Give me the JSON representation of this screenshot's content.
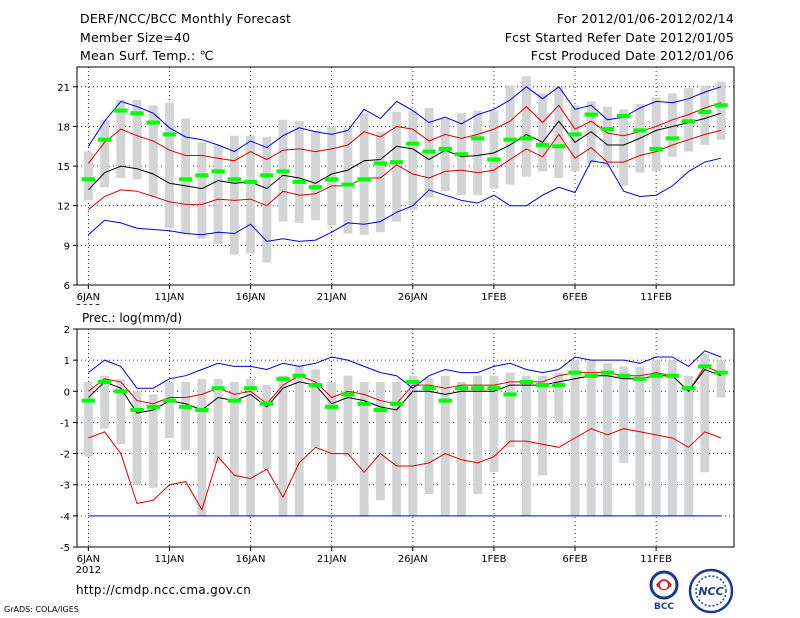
{
  "header": {
    "title": "DERF/NCC/BCC Monthly Forecast",
    "member_size": "Member Size=40",
    "variable": "Mean Surf. Temp.: ℃",
    "period": "For 2012/01/06-2012/02/14",
    "started": "Fcst Started Refer Date 2012/01/05",
    "produced": "Fcst Produced Date 2012/01/06"
  },
  "footer": {
    "url": "http://cmdp.ncc.cma.gov.cn",
    "credit": "GrADS: COLA/IGES"
  },
  "logos": [
    {
      "name": "BCC",
      "icon": "bcc-logo"
    },
    {
      "name": "NCC",
      "icon": "ncc-logo"
    }
  ],
  "colors": {
    "bar": "#d3d4d6",
    "mean": "#000000",
    "median": "#00ff00",
    "inner": "#dd0000",
    "outer": "#0000dd",
    "grid": "#000000"
  },
  "chart_data": [
    {
      "type": "line",
      "title": "Mean Surf. Temp.: ℃",
      "year_label": "2012",
      "x_ticks": [
        {
          "day": 1,
          "label": "6JAN"
        },
        {
          "day": 6,
          "label": "11JAN"
        },
        {
          "day": 11,
          "label": "16JAN"
        },
        {
          "day": 16,
          "label": "21JAN"
        },
        {
          "day": 21,
          "label": "26JAN"
        },
        {
          "day": 26,
          "label": "1FEB"
        },
        {
          "day": 31,
          "label": "6FEB"
        },
        {
          "day": 36,
          "label": "11FEB"
        }
      ],
      "xlim": [
        0.3,
        40.8
      ],
      "ylim": [
        6,
        22.5
      ],
      "y_ticks": [
        6,
        9,
        12,
        15,
        18,
        21
      ],
      "days": [
        1,
        2,
        3,
        4,
        5,
        6,
        7,
        8,
        9,
        10,
        11,
        12,
        13,
        14,
        15,
        16,
        17,
        18,
        19,
        20,
        21,
        22,
        23,
        24,
        25,
        26,
        27,
        28,
        29,
        30,
        31,
        32,
        33,
        34,
        35,
        36,
        37,
        38,
        39,
        40
      ],
      "series": [
        {
          "name": "ensemble maximum",
          "color": "blue",
          "values": [
            16.5,
            18.4,
            19.9,
            19.5,
            19.0,
            17.9,
            17.2,
            17.0,
            16.6,
            16.1,
            16.9,
            16.4,
            17.3,
            17.9,
            17.6,
            17.4,
            17.7,
            19.3,
            18.6,
            19.9,
            19.2,
            18.3,
            18.7,
            18.2,
            18.9,
            19.3,
            20.0,
            21.0,
            20.1,
            21.0,
            19.3,
            19.6,
            18.5,
            18.7,
            19.4,
            19.9,
            19.8,
            20.1,
            20.6,
            21.0
          ]
        },
        {
          "name": "upper band",
          "color": "red",
          "values": [
            15.2,
            16.8,
            17.8,
            17.3,
            16.9,
            16.2,
            15.8,
            15.8,
            15.6,
            15.4,
            16.1,
            15.5,
            16.2,
            16.3,
            16.1,
            16.3,
            16.6,
            17.6,
            17.2,
            18.0,
            17.8,
            16.9,
            17.4,
            17.1,
            17.4,
            17.8,
            18.4,
            19.5,
            18.3,
            19.6,
            17.8,
            18.4,
            17.5,
            17.3,
            17.6,
            18.0,
            18.5,
            18.9,
            19.4,
            19.8
          ]
        },
        {
          "name": "ensemble mean",
          "color": "black",
          "values": [
            13.2,
            14.5,
            15.0,
            14.8,
            14.4,
            13.7,
            13.5,
            13.3,
            13.9,
            13.7,
            13.8,
            13.3,
            14.3,
            14.1,
            13.7,
            14.4,
            14.7,
            15.4,
            15.5,
            16.5,
            16.3,
            15.5,
            16.2,
            15.7,
            15.8,
            16.0,
            16.6,
            17.4,
            16.8,
            18.4,
            16.8,
            17.6,
            16.6,
            16.6,
            17.1,
            17.7,
            18.0,
            18.3,
            18.6,
            19.0
          ]
        },
        {
          "name": "lower band",
          "color": "red",
          "values": [
            11.7,
            12.7,
            13.2,
            13.1,
            12.7,
            12.3,
            12.1,
            12.1,
            12.5,
            12.4,
            12.5,
            12.0,
            13.1,
            12.8,
            12.9,
            13.5,
            13.5,
            14.1,
            14.1,
            15.1,
            14.4,
            14.1,
            14.6,
            14.7,
            14.5,
            14.7,
            15.5,
            16.3,
            15.7,
            17.4,
            15.6,
            16.4,
            15.3,
            15.3,
            15.8,
            16.1,
            16.6,
            17.0,
            17.4,
            17.7
          ]
        },
        {
          "name": "ensemble minimum",
          "color": "blue",
          "values": [
            9.8,
            10.9,
            10.7,
            10.3,
            10.2,
            10.1,
            9.9,
            9.8,
            10.0,
            9.9,
            10.6,
            9.3,
            9.5,
            9.3,
            9.4,
            10.0,
            10.7,
            10.6,
            10.8,
            11.5,
            12.0,
            13.2,
            12.8,
            12.4,
            12.2,
            12.8,
            12.0,
            12.0,
            12.8,
            13.4,
            13.0,
            15.4,
            15.2,
            13.1,
            12.7,
            12.8,
            13.5,
            14.6,
            15.3,
            15.6
          ]
        }
      ],
      "median": [
        14.0,
        17.0,
        19.2,
        19.0,
        18.3,
        17.4,
        14.0,
        14.3,
        14.6,
        14.0,
        13.8,
        14.3,
        14.6,
        13.8,
        13.4,
        14.0,
        13.6,
        14.0,
        15.2,
        15.3,
        16.7,
        16.1,
        16.3,
        15.9,
        17.1,
        15.5,
        17.0,
        17.1,
        16.6,
        16.5,
        17.4,
        18.9,
        17.8,
        18.8,
        17.7,
        16.3,
        17.1,
        18.4,
        19.1,
        19.6
      ],
      "bar_low": [
        12.4,
        13.4,
        14.1,
        14.0,
        12.7,
        10.3,
        9.9,
        9.5,
        9.1,
        8.3,
        8.4,
        7.7,
        10.8,
        10.7,
        10.9,
        10.5,
        9.9,
        9.8,
        10.0,
        10.8,
        11.7,
        12.6,
        13.1,
        12.8,
        12.8,
        13.3,
        13.6,
        14.2,
        14.6,
        14.1,
        14.6,
        15.2,
        14.9,
        13.5,
        14.5,
        14.6,
        15.7,
        16.1,
        16.6,
        17.0
      ],
      "bar_high": [
        16.1,
        18.5,
        20.0,
        20.0,
        19.6,
        19.8,
        18.6,
        16.8,
        16.6,
        17.3,
        17.3,
        17.2,
        18.5,
        18.4,
        17.7,
        18.0,
        17.9,
        19.0,
        17.6,
        19.1,
        19.2,
        19.4,
        18.6,
        19.0,
        19.2,
        19.2,
        21.1,
        21.8,
        20.5,
        21.0,
        19.6,
        19.9,
        19.5,
        19.3,
        19.7,
        20.2,
        20.5,
        20.9,
        21.1,
        21.4
      ]
    },
    {
      "type": "line",
      "title": "Prec.: log(mm/d)",
      "year_label": "2012",
      "x_ticks": [
        {
          "day": 1,
          "label": "6JAN"
        },
        {
          "day": 6,
          "label": "11JAN"
        },
        {
          "day": 11,
          "label": "16JAN"
        },
        {
          "day": 16,
          "label": "21JAN"
        },
        {
          "day": 21,
          "label": "26JAN"
        },
        {
          "day": 26,
          "label": "1FEB"
        },
        {
          "day": 31,
          "label": "6FEB"
        },
        {
          "day": 36,
          "label": "11FEB"
        }
      ],
      "xlim": [
        0.3,
        40.8
      ],
      "ylim": [
        -5,
        2
      ],
      "y_ticks": [
        -5,
        -4,
        -3,
        -2,
        -1,
        0,
        1,
        2
      ],
      "days": [
        1,
        2,
        3,
        4,
        5,
        6,
        7,
        8,
        9,
        10,
        11,
        12,
        13,
        14,
        15,
        16,
        17,
        18,
        19,
        20,
        21,
        22,
        23,
        24,
        25,
        26,
        27,
        28,
        29,
        30,
        31,
        32,
        33,
        34,
        35,
        36,
        37,
        38,
        39,
        40
      ],
      "series": [
        {
          "name": "ensemble maximum",
          "color": "blue",
          "values": [
            0.6,
            1.0,
            0.8,
            0.1,
            0.1,
            0.4,
            0.5,
            0.7,
            0.9,
            0.8,
            0.8,
            0.7,
            0.9,
            0.8,
            0.9,
            1.1,
            1.0,
            0.8,
            0.6,
            0.5,
            0.1,
            0.5,
            0.7,
            0.6,
            0.6,
            0.8,
            0.9,
            0.7,
            0.6,
            0.7,
            1.1,
            1.0,
            1.0,
            1.0,
            0.9,
            1.1,
            1.1,
            0.8,
            1.3,
            1.1
          ]
        },
        {
          "name": "upper band",
          "color": "red",
          "values": [
            0.0,
            0.4,
            0.3,
            -0.3,
            -0.4,
            -0.2,
            -0.2,
            -0.1,
            0.1,
            -0.1,
            0.0,
            -0.4,
            0.2,
            0.5,
            0.3,
            -0.2,
            0.0,
            -0.1,
            -0.3,
            -0.4,
            0.2,
            0.2,
            0.1,
            0.2,
            0.2,
            0.2,
            0.3,
            0.3,
            0.3,
            0.5,
            0.6,
            0.6,
            0.6,
            0.5,
            0.5,
            0.6,
            0.5,
            0.0,
            0.8,
            0.6
          ]
        },
        {
          "name": "ensemble mean",
          "color": "black",
          "values": [
            -0.2,
            0.3,
            0.1,
            -0.7,
            -0.6,
            -0.3,
            -0.4,
            -0.6,
            -0.2,
            -0.3,
            -0.1,
            -0.5,
            0.1,
            0.3,
            0.2,
            -0.4,
            -0.2,
            -0.3,
            -0.5,
            -0.6,
            0.0,
            0.0,
            -0.1,
            0.0,
            0.0,
            0.0,
            0.2,
            0.2,
            0.2,
            0.3,
            0.4,
            0.5,
            0.5,
            0.4,
            0.4,
            0.5,
            0.5,
            0.0,
            0.7,
            0.5
          ]
        },
        {
          "name": "lower band",
          "color": "red",
          "values": [
            -1.5,
            -1.3,
            -2.0,
            -3.6,
            -3.5,
            -3.0,
            -2.9,
            -3.8,
            -2.1,
            -2.7,
            -2.8,
            -2.5,
            -3.4,
            -2.3,
            -1.8,
            -2.0,
            -2.0,
            -2.6,
            -2.0,
            -2.4,
            -2.4,
            -2.3,
            -2.0,
            -2.2,
            -2.3,
            -2.1,
            -1.6,
            -1.6,
            -1.7,
            -1.8,
            -1.5,
            -1.2,
            -1.4,
            -1.2,
            -1.3,
            -1.4,
            -1.5,
            -1.8,
            -1.3,
            -1.5
          ]
        },
        {
          "name": "ensemble minimum",
          "color": "blue",
          "values": [
            -4,
            -4,
            -4,
            -4,
            -4,
            -4,
            -4,
            -4,
            -4,
            -4,
            -4,
            -4,
            -4,
            -4,
            -4,
            -4,
            -4,
            -4,
            -4,
            -4,
            -4,
            -4,
            -4,
            -4,
            -4,
            -4,
            -4,
            -4,
            -4,
            -4,
            -4,
            -4,
            -4,
            -4,
            -4,
            -4,
            -4,
            -4,
            -4,
            -4
          ]
        }
      ],
      "median": [
        -0.3,
        0.3,
        0.0,
        -0.6,
        -0.5,
        -0.3,
        -0.5,
        -0.6,
        0.1,
        -0.3,
        0.1,
        -0.4,
        0.4,
        0.5,
        0.2,
        -0.5,
        -0.1,
        -0.4,
        -0.6,
        -0.4,
        0.3,
        0.1,
        -0.3,
        0.1,
        0.1,
        0.1,
        -0.1,
        0.3,
        0.2,
        0.2,
        0.6,
        0.5,
        0.6,
        0.5,
        0.4,
        0.5,
        0.5,
        0.1,
        0.8,
        0.6
      ],
      "bar_low": [
        -2.1,
        -1.2,
        -1.7,
        -3.0,
        -3.1,
        -1.5,
        -1.9,
        -4.0,
        -2.3,
        -4.0,
        -4.0,
        -2.5,
        -4.0,
        -4.0,
        -1.8,
        -2.9,
        -2.1,
        -4.0,
        -3.5,
        -4.0,
        -4.0,
        -3.3,
        -4.0,
        -4.0,
        -3.3,
        -2.6,
        -1.8,
        -4.0,
        -2.7,
        -1.0,
        -4.0,
        -4.0,
        -4.0,
        -2.3,
        -4.0,
        -4.0,
        -4.0,
        -4.0,
        -2.6,
        -0.2
      ],
      "bar_high": [
        0.3,
        0.5,
        0.4,
        0.0,
        -0.1,
        0.3,
        0.3,
        0.4,
        0.4,
        0.3,
        0.4,
        0.2,
        0.5,
        0.8,
        0.7,
        0.3,
        0.5,
        0.3,
        0.3,
        0.3,
        0.5,
        0.4,
        0.5,
        0.3,
        0.5,
        0.5,
        0.6,
        0.5,
        0.5,
        0.6,
        1.0,
        1.0,
        0.9,
        0.8,
        0.8,
        1.0,
        1.0,
        0.5,
        1.2,
        1.0
      ]
    }
  ]
}
